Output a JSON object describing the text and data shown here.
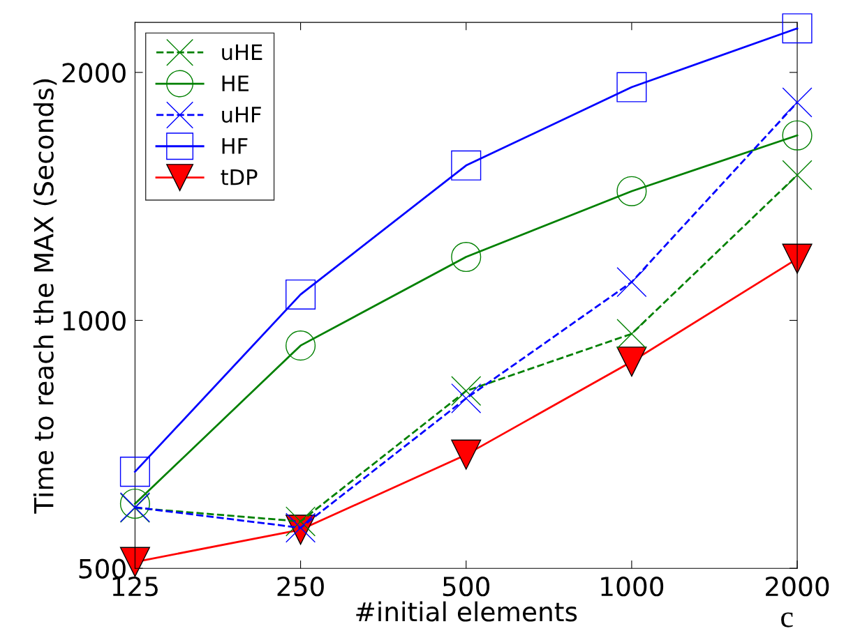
{
  "chart_data": {
    "type": "line",
    "xlabel": "#initial elements",
    "ylabel": "Time to reach the MAX (Seconds)",
    "x": [
      125,
      250,
      500,
      1000,
      2000
    ],
    "xlim": [
      125,
      2000
    ],
    "xticks": [
      125,
      250,
      500,
      1000,
      2000
    ],
    "ylim": [
      500,
      2300
    ],
    "yticks": [
      500,
      1000,
      2000
    ],
    "log": "xy",
    "grid": false,
    "legend": "top left",
    "annotations": [
      "c"
    ],
    "series": [
      {
        "name": "uHE",
        "color": "#008000",
        "marker": "cross",
        "line_style": "dashed",
        "values": [
          592,
          570,
          821,
          963,
          1501
        ]
      },
      {
        "name": "HE",
        "color": "#008000",
        "marker": "circle",
        "line_style": "solid",
        "values": [
          599,
          932,
          1194,
          1435,
          1677
        ]
      },
      {
        "name": "uHF",
        "color": "#0000ff",
        "marker": "cross",
        "line_style": "dashed",
        "values": [
          593,
          560,
          804,
          1113,
          1839
        ]
      },
      {
        "name": "HF",
        "color": "#0000ff",
        "marker": "square",
        "line_style": "solid",
        "values": [
          655,
          1075,
          1542,
          1919,
          2262
        ]
      },
      {
        "name": "tDP",
        "color": "#ff0000",
        "marker": "triangle",
        "line_style": "solid",
        "values": [
          509,
          557,
          687,
          891,
          1188
        ]
      }
    ]
  }
}
